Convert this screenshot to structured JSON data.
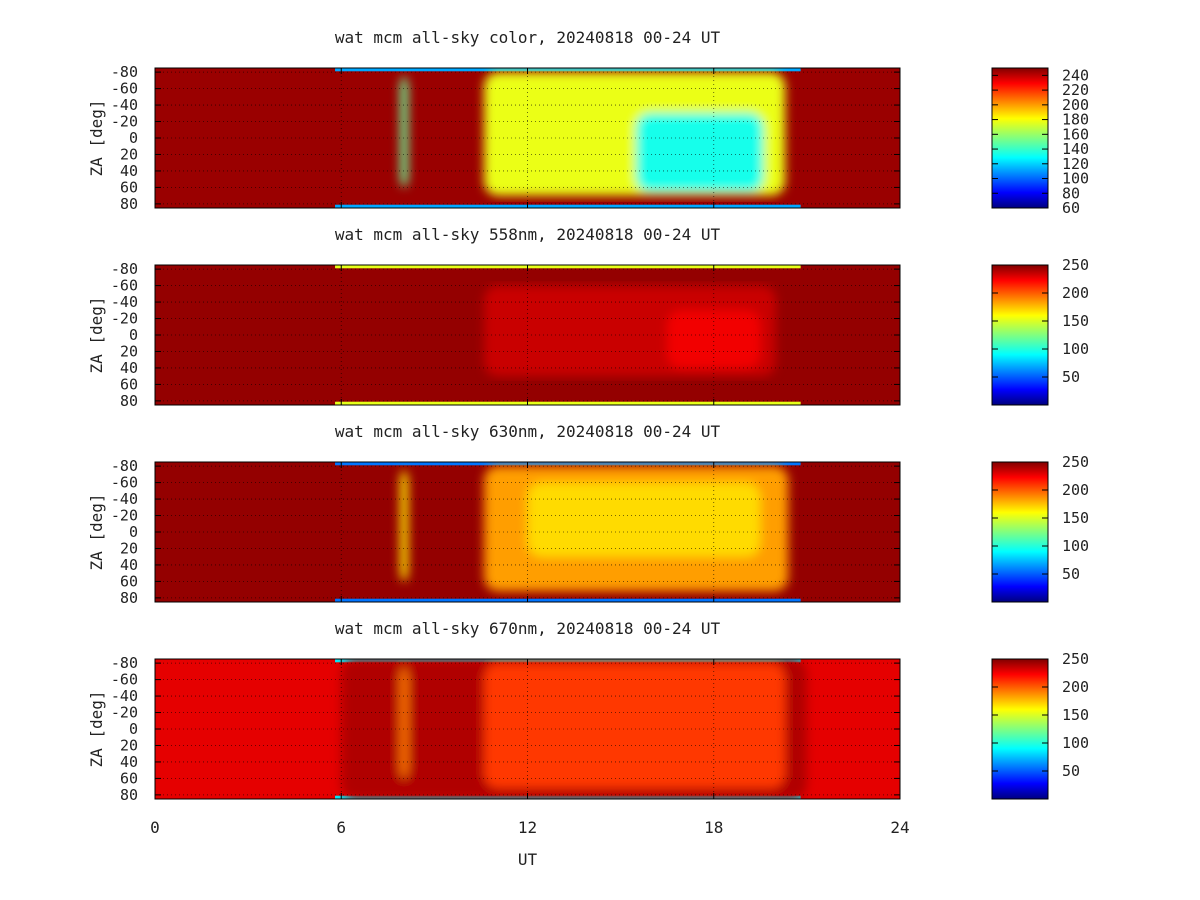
{
  "chart_data": [
    {
      "type": "heatmap",
      "title": "wat mcm all-sky color, 20240818 00-24 UT",
      "ylabel": "ZA [deg]",
      "xlim": [
        0,
        24
      ],
      "ylim": [
        -85,
        85
      ],
      "x_ticks": [
        0,
        6,
        12,
        18,
        24
      ],
      "y_ticks": [
        -80,
        -60,
        -40,
        -20,
        0,
        20,
        40,
        60,
        80
      ],
      "y_tick_labels": [
        "-80",
        "-60",
        "-40",
        "-20",
        "0",
        "20",
        "40",
        "60",
        "80"
      ],
      "colorbar": {
        "range": [
          60,
          250
        ],
        "ticks": [
          60,
          80,
          100,
          120,
          140,
          160,
          180,
          200,
          220,
          240
        ]
      },
      "base_value": 245,
      "edge_value": 115,
      "features": [
        {
          "x": [
            10.6,
            20.3
          ],
          "za": [
            -80,
            70
          ],
          "value": 175
        },
        {
          "x": [
            15.5,
            19.6
          ],
          "za": [
            -30,
            65
          ],
          "value": 135
        },
        {
          "x": [
            7.9,
            8.15
          ],
          "za": [
            -75,
            60
          ],
          "value": 150
        }
      ],
      "grid": true
    },
    {
      "type": "heatmap",
      "title": "wat mcm all-sky 558nm, 20240818 00-24 UT",
      "ylabel": "ZA [deg]",
      "xlim": [
        0,
        24
      ],
      "ylim": [
        -85,
        85
      ],
      "x_ticks": [
        0,
        6,
        12,
        18,
        24
      ],
      "y_ticks": [
        -80,
        -60,
        -40,
        -20,
        0,
        20,
        40,
        60,
        80
      ],
      "y_tick_labels": [
        "-80",
        "-60",
        "-40",
        "-20",
        "0",
        "20",
        "40",
        "60",
        "80"
      ],
      "colorbar": {
        "range": [
          0,
          250
        ],
        "ticks": [
          50,
          100,
          150,
          200,
          250
        ]
      },
      "base_value": 245,
      "edge_value": 150,
      "features": [
        {
          "x": [
            10.6,
            20.0
          ],
          "za": [
            -60,
            50
          ],
          "value": 232
        },
        {
          "x": [
            16.5,
            19.5
          ],
          "za": [
            -30,
            40
          ],
          "value": 222
        }
      ],
      "grid": true
    },
    {
      "type": "heatmap",
      "title": "wat mcm all-sky 630nm, 20240818 00-24 UT",
      "ylabel": "ZA [deg]",
      "xlim": [
        0,
        24
      ],
      "ylim": [
        -85,
        85
      ],
      "x_ticks": [
        0,
        6,
        12,
        18,
        24
      ],
      "y_ticks": [
        -80,
        -60,
        -40,
        -20,
        0,
        20,
        40,
        60,
        80
      ],
      "y_tick_labels": [
        "-80",
        "-60",
        "-40",
        "-20",
        "0",
        "20",
        "40",
        "60",
        "80"
      ],
      "colorbar": {
        "range": [
          0,
          250
        ],
        "ticks": [
          50,
          100,
          150,
          200,
          250
        ]
      },
      "base_value": 245,
      "edge_value": 60,
      "features": [
        {
          "x": [
            10.6,
            20.4
          ],
          "za": [
            -80,
            72
          ],
          "value": 180
        },
        {
          "x": [
            12.0,
            19.5
          ],
          "za": [
            -60,
            30
          ],
          "value": 165
        },
        {
          "x": [
            7.9,
            8.15
          ],
          "za": [
            -75,
            60
          ],
          "value": 160
        }
      ],
      "grid": true
    },
    {
      "type": "heatmap",
      "title": "wat mcm all-sky 670nm, 20240818 00-24 UT",
      "ylabel": "ZA [deg]",
      "xlabel": "UT",
      "xlim": [
        0,
        24
      ],
      "ylim": [
        -85,
        85
      ],
      "x_ticks": [
        0,
        6,
        12,
        18,
        24
      ],
      "x_tick_labels": [
        "0",
        "6",
        "12",
        "18",
        "24"
      ],
      "y_ticks": [
        -80,
        -60,
        -40,
        -20,
        0,
        20,
        40,
        60,
        80
      ],
      "y_tick_labels": [
        "-80",
        "-60",
        "-40",
        "-20",
        "0",
        "20",
        "40",
        "60",
        "80"
      ],
      "colorbar": {
        "range": [
          0,
          250
        ],
        "ticks": [
          50,
          100,
          150,
          200,
          250
        ]
      },
      "base_value": 225,
      "edge_value": 90,
      "features": [
        {
          "x": [
            6.0,
            21.0
          ],
          "za": [
            -85,
            85
          ],
          "value": 238
        },
        {
          "x": [
            10.6,
            20.3
          ],
          "za": [
            -80,
            72
          ],
          "value": 205
        },
        {
          "x": [
            7.9,
            8.15
          ],
          "za": [
            -75,
            60
          ],
          "value": 190
        }
      ],
      "grid": true
    }
  ]
}
